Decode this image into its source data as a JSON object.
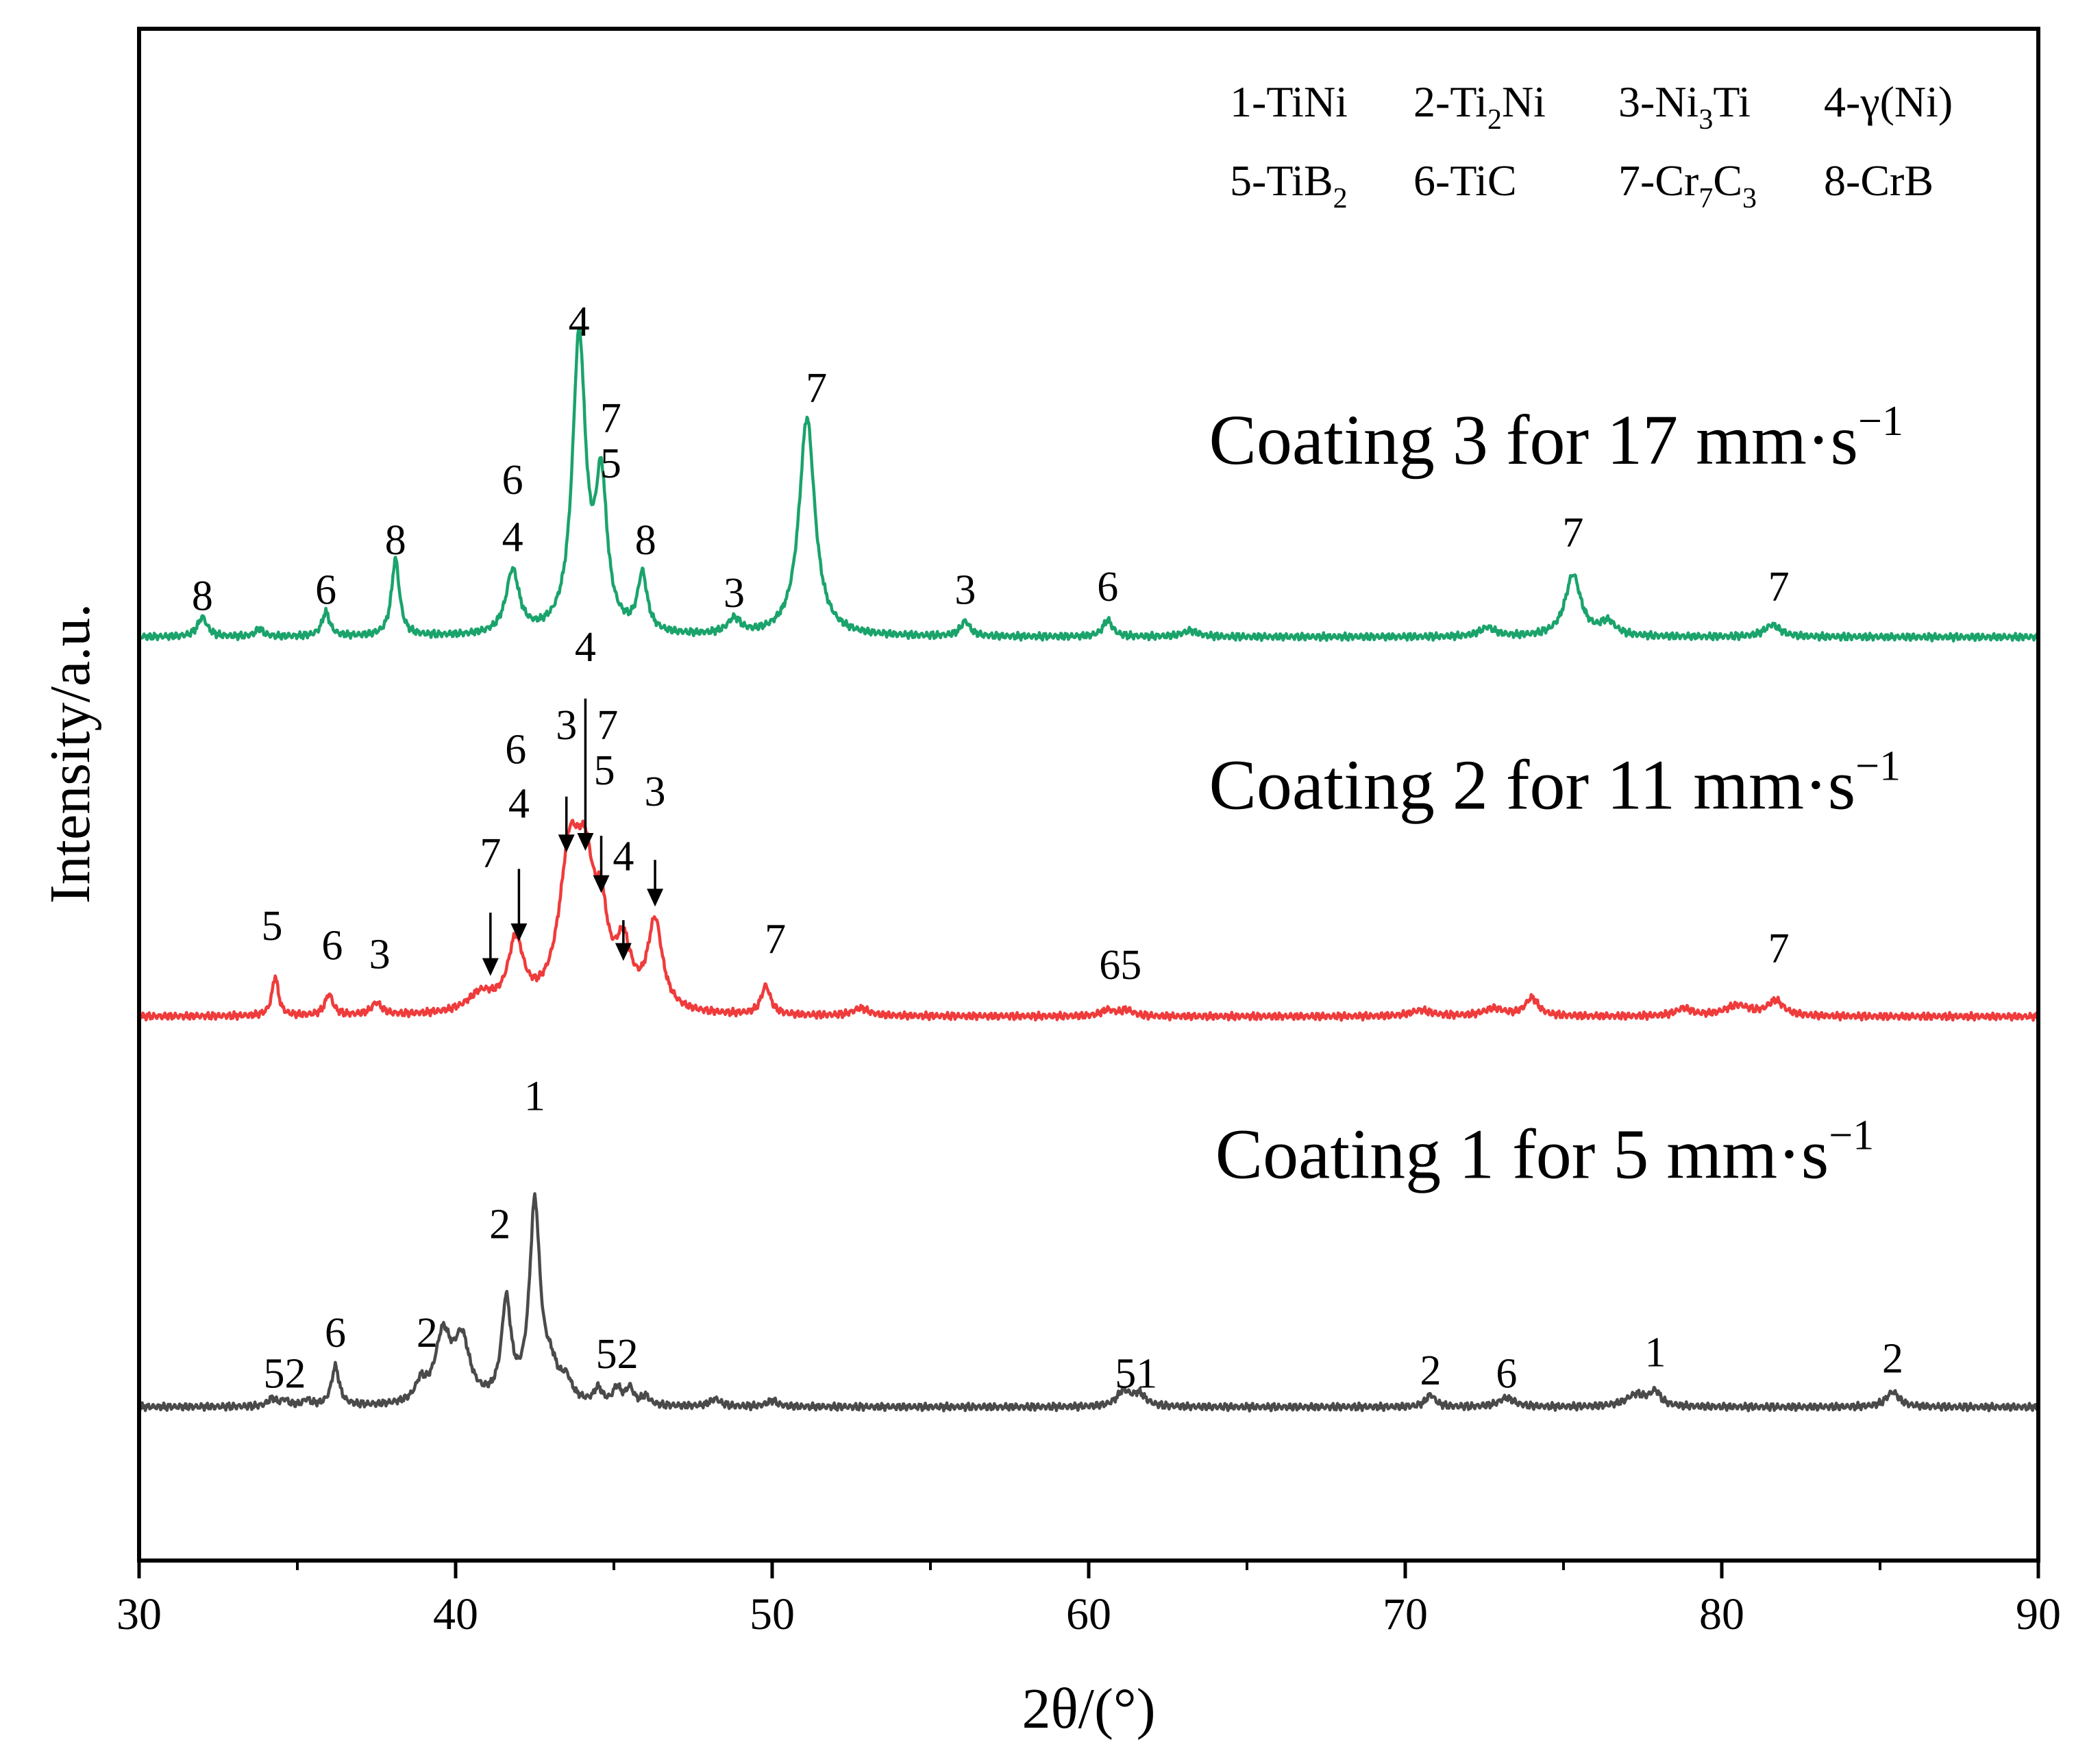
{
  "chart_data": {
    "type": "line",
    "title": "",
    "xlabel": "2θ/(°)",
    "ylabel": "Intensity/a.u.",
    "xlim": [
      30,
      90
    ],
    "xticks": [
      30,
      40,
      50,
      60,
      70,
      80,
      90
    ],
    "y_units": "arbitrary (curves vertically offset)",
    "grid": false,
    "legend": {
      "position": "top-right",
      "rows": [
        [
          {
            "prefix": "1-TiNi",
            "sub": "",
            "suffix": ""
          },
          {
            "prefix": "2-Ti",
            "sub": "2",
            "suffix": "Ni"
          },
          {
            "prefix": "3-Ni",
            "sub": "3",
            "suffix": "Ti"
          },
          {
            "prefix": "4-γ(Ni)",
            "sub": "",
            "suffix": ""
          }
        ],
        [
          {
            "prefix": "5-TiB",
            "sub": "2",
            "suffix": ""
          },
          {
            "prefix": "6-TiC",
            "sub": "",
            "suffix": ""
          },
          {
            "prefix": "7-Cr",
            "sub": "7",
            "suffix": "C",
            "sub2": "3"
          },
          {
            "prefix": "8-CrB",
            "sub": "",
            "suffix": ""
          }
        ]
      ]
    },
    "series": [
      {
        "name": "Coating 3 for 17 mm·s",
        "label_main": "Coating 3 for 17 mm·s",
        "label_sup": "−1",
        "color": "#1aa36b",
        "baseline": 100,
        "peaks": [
          {
            "x": 32.0,
            "h": 13,
            "w": 0.18
          },
          {
            "x": 33.8,
            "h": 5,
            "w": 0.15
          },
          {
            "x": 35.9,
            "h": 16,
            "w": 0.15
          },
          {
            "x": 38.1,
            "h": 51,
            "w": 0.15
          },
          {
            "x": 41.8,
            "h": 42,
            "w": 0.25
          },
          {
            "x": 43.9,
            "h": 195,
            "w": 0.25
          },
          {
            "x": 44.6,
            "h": 95,
            "w": 0.22
          },
          {
            "x": 45.9,
            "h": 38,
            "w": 0.18
          },
          {
            "x": 48.8,
            "h": 10,
            "w": 0.25
          },
          {
            "x": 51.1,
            "h": 145,
            "w": 0.3
          },
          {
            "x": 56.1,
            "h": 10,
            "w": 0.18
          },
          {
            "x": 60.6,
            "h": 11,
            "w": 0.18
          },
          {
            "x": 63.2,
            "h": 4,
            "w": 0.3
          },
          {
            "x": 72.6,
            "h": 6,
            "w": 0.3
          },
          {
            "x": 75.3,
            "h": 41,
            "w": 0.3
          },
          {
            "x": 76.4,
            "h": 9,
            "w": 0.3
          },
          {
            "x": 81.6,
            "h": 8,
            "w": 0.3
          }
        ],
        "peak_labels": [
          {
            "x": 32.0,
            "y": 118,
            "text": "8"
          },
          {
            "x": 35.9,
            "y": 122,
            "text": "6"
          },
          {
            "x": 38.1,
            "y": 155,
            "text": "8"
          },
          {
            "x": 41.8,
            "y": 195,
            "text": "6"
          },
          {
            "x": 41.8,
            "y": 157,
            "text": "4"
          },
          {
            "x": 43.9,
            "y": 300,
            "text": "4"
          },
          {
            "x": 44.9,
            "y": 236,
            "text": "7"
          },
          {
            "x": 44.9,
            "y": 206,
            "text": "5"
          },
          {
            "x": 46.0,
            "y": 155,
            "text": "8"
          },
          {
            "x": 48.8,
            "y": 120,
            "text": "3"
          },
          {
            "x": 51.4,
            "y": 256,
            "text": "7"
          },
          {
            "x": 56.1,
            "y": 122,
            "text": "3"
          },
          {
            "x": 60.6,
            "y": 124,
            "text": "6"
          },
          {
            "x": 75.3,
            "y": 160,
            "text": "7"
          },
          {
            "x": 81.8,
            "y": 124,
            "text": "7"
          }
        ],
        "label_pos": {
          "x": 63.8,
          "y": 215
        }
      },
      {
        "name": "Coating 2 for 11 mm·s",
        "label_main": "Coating 2 for 11 mm·s",
        "label_sup": "−1",
        "color": "#ef3b3b",
        "baseline": 100,
        "peaks": [
          {
            "x": 34.3,
            "h": 26,
            "w": 0.12
          },
          {
            "x": 36.0,
            "h": 14,
            "w": 0.15
          },
          {
            "x": 37.5,
            "h": 8,
            "w": 0.2
          },
          {
            "x": 40.8,
            "h": 12,
            "w": 0.5
          },
          {
            "x": 41.9,
            "h": 45,
            "w": 0.3
          },
          {
            "x": 43.6,
            "h": 95,
            "w": 0.4
          },
          {
            "x": 44.1,
            "h": 75,
            "w": 0.35
          },
          {
            "x": 44.6,
            "h": 45,
            "w": 0.25
          },
          {
            "x": 45.3,
            "h": 38,
            "w": 0.3
          },
          {
            "x": 46.3,
            "h": 58,
            "w": 0.28
          },
          {
            "x": 49.8,
            "h": 19,
            "w": 0.18
          },
          {
            "x": 52.8,
            "h": 5,
            "w": 0.3
          },
          {
            "x": 60.6,
            "h": 4,
            "w": 0.25
          },
          {
            "x": 61.2,
            "h": 4,
            "w": 0.25
          },
          {
            "x": 70.5,
            "h": 4,
            "w": 0.4
          },
          {
            "x": 72.8,
            "h": 5,
            "w": 0.4
          },
          {
            "x": 74.0,
            "h": 12,
            "w": 0.25
          },
          {
            "x": 78.8,
            "h": 5,
            "w": 0.3
          },
          {
            "x": 80.5,
            "h": 7,
            "w": 0.5
          },
          {
            "x": 81.7,
            "h": 10,
            "w": 0.3
          }
        ],
        "peak_labels": [
          {
            "x": 34.2,
            "y": 151,
            "text": "5"
          },
          {
            "x": 36.1,
            "y": 138,
            "text": "6"
          },
          {
            "x": 37.6,
            "y": 132,
            "text": "3"
          },
          {
            "x": 41.1,
            "y": 199,
            "text": "7"
          },
          {
            "x": 42.0,
            "y": 232,
            "text": "4"
          },
          {
            "x": 41.9,
            "y": 268,
            "text": "6"
          },
          {
            "x": 43.5,
            "y": 284,
            "text": "3"
          },
          {
            "x": 44.1,
            "y": 336,
            "text": "4"
          },
          {
            "x": 44.8,
            "y": 284,
            "text": "7"
          },
          {
            "x": 44.7,
            "y": 254,
            "text": "5"
          },
          {
            "x": 45.3,
            "y": 197,
            "text": "4"
          },
          {
            "x": 46.3,
            "y": 240,
            "text": "3"
          },
          {
            "x": 50.1,
            "y": 142,
            "text": "7"
          },
          {
            "x": 61.0,
            "y": 125,
            "text": "65"
          },
          {
            "x": 81.8,
            "y": 136,
            "text": "7"
          }
        ],
        "arrows": [
          {
            "x": 41.1,
            "from": 169,
            "to": 127
          },
          {
            "x": 42.0,
            "from": 198,
            "to": 150
          },
          {
            "x": 43.5,
            "from": 246,
            "to": 209
          },
          {
            "x": 44.1,
            "from": 311,
            "to": 210
          },
          {
            "x": 44.6,
            "from": 220,
            "to": 182
          },
          {
            "x": 45.3,
            "from": 164,
            "to": 137
          },
          {
            "x": 46.3,
            "from": 204,
            "to": 173
          }
        ],
        "label_pos": {
          "x": 63.8,
          "y": 238
        }
      },
      {
        "name": "Coating 1 for 5 mm·s",
        "label_main": "Coating 1 for 5 mm·s",
        "label_sup": "−1",
        "color": "#4a4a4a",
        "baseline": 100,
        "peaks": [
          {
            "x": 34.2,
            "h": 5,
            "w": 0.15
          },
          {
            "x": 34.6,
            "h": 4,
            "w": 0.15
          },
          {
            "x": 35.3,
            "h": 4,
            "w": 0.15
          },
          {
            "x": 36.2,
            "h": 26,
            "w": 0.15
          },
          {
            "x": 38.9,
            "h": 12,
            "w": 0.2
          },
          {
            "x": 39.6,
            "h": 44,
            "w": 0.3
          },
          {
            "x": 40.2,
            "h": 40,
            "w": 0.3
          },
          {
            "x": 41.6,
            "h": 65,
            "w": 0.18
          },
          {
            "x": 42.5,
            "h": 130,
            "w": 0.2
          },
          {
            "x": 43.0,
            "h": 20,
            "w": 0.3
          },
          {
            "x": 43.5,
            "h": 12,
            "w": 0.2
          },
          {
            "x": 44.5,
            "h": 10,
            "w": 0.15
          },
          {
            "x": 45.1,
            "h": 11,
            "w": 0.15
          },
          {
            "x": 45.5,
            "h": 11,
            "w": 0.15
          },
          {
            "x": 46.0,
            "h": 6,
            "w": 0.15
          },
          {
            "x": 48.2,
            "h": 5,
            "w": 0.2
          },
          {
            "x": 50.0,
            "h": 4,
            "w": 0.2
          },
          {
            "x": 61.1,
            "h": 10,
            "w": 0.25
          },
          {
            "x": 61.6,
            "h": 8,
            "w": 0.25
          },
          {
            "x": 70.8,
            "h": 8,
            "w": 0.18
          },
          {
            "x": 73.2,
            "h": 6,
            "w": 0.3
          },
          {
            "x": 77.3,
            "h": 8,
            "w": 0.4
          },
          {
            "x": 77.9,
            "h": 9,
            "w": 0.2
          },
          {
            "x": 85.4,
            "h": 10,
            "w": 0.25
          }
        ],
        "peak_labels": [
          {
            "x": 34.6,
            "y": 113,
            "text": "52"
          },
          {
            "x": 36.2,
            "y": 140,
            "text": "6"
          },
          {
            "x": 39.1,
            "y": 140,
            "text": "2"
          },
          {
            "x": 41.4,
            "y": 212,
            "text": "2"
          },
          {
            "x": 42.5,
            "y": 297,
            "text": "1"
          },
          {
            "x": 45.1,
            "y": 126,
            "text": "52"
          },
          {
            "x": 61.5,
            "y": 113,
            "text": "51"
          },
          {
            "x": 70.8,
            "y": 115,
            "text": "2"
          },
          {
            "x": 73.2,
            "y": 113,
            "text": "6"
          },
          {
            "x": 77.9,
            "y": 127,
            "text": "1"
          },
          {
            "x": 85.4,
            "y": 123,
            "text": "2"
          }
        ],
        "label_pos": {
          "x": 64.0,
          "y": 252
        }
      }
    ]
  }
}
